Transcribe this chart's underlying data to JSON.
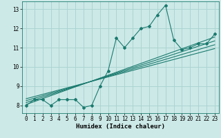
{
  "title": "",
  "xlabel": "Humidex (Indice chaleur)",
  "ylabel": "",
  "x_data": [
    0,
    1,
    2,
    3,
    4,
    5,
    6,
    7,
    8,
    9,
    10,
    11,
    12,
    13,
    14,
    15,
    16,
    17,
    18,
    19,
    20,
    21,
    22,
    23
  ],
  "y_scatter": [
    8.0,
    8.3,
    8.3,
    8.0,
    8.3,
    8.3,
    8.3,
    7.9,
    8.0,
    9.0,
    9.8,
    11.5,
    11.0,
    11.5,
    12.0,
    12.1,
    12.7,
    13.2,
    11.4,
    10.9,
    11.0,
    11.2,
    11.2,
    11.7
  ],
  "regression_lines": [
    {
      "x": [
        0,
        23
      ],
      "y": [
        8.05,
        11.55
      ]
    },
    {
      "x": [
        0,
        23
      ],
      "y": [
        8.15,
        11.35
      ]
    },
    {
      "x": [
        0,
        23
      ],
      "y": [
        8.25,
        11.15
      ]
    },
    {
      "x": [
        0,
        23
      ],
      "y": [
        8.35,
        10.95
      ]
    }
  ],
  "line_color": "#1a7a6e",
  "bg_color": "#cce9e7",
  "grid_color": "#aad4d1",
  "ylim": [
    7.6,
    13.4
  ],
  "xlim": [
    -0.5,
    23.5
  ],
  "yticks": [
    8,
    9,
    10,
    11,
    12,
    13
  ],
  "xticks": [
    0,
    1,
    2,
    3,
    4,
    5,
    6,
    7,
    8,
    9,
    10,
    11,
    12,
    13,
    14,
    15,
    16,
    17,
    18,
    19,
    20,
    21,
    22,
    23
  ],
  "tick_fontsize": 5.5,
  "xlabel_fontsize": 6.5
}
